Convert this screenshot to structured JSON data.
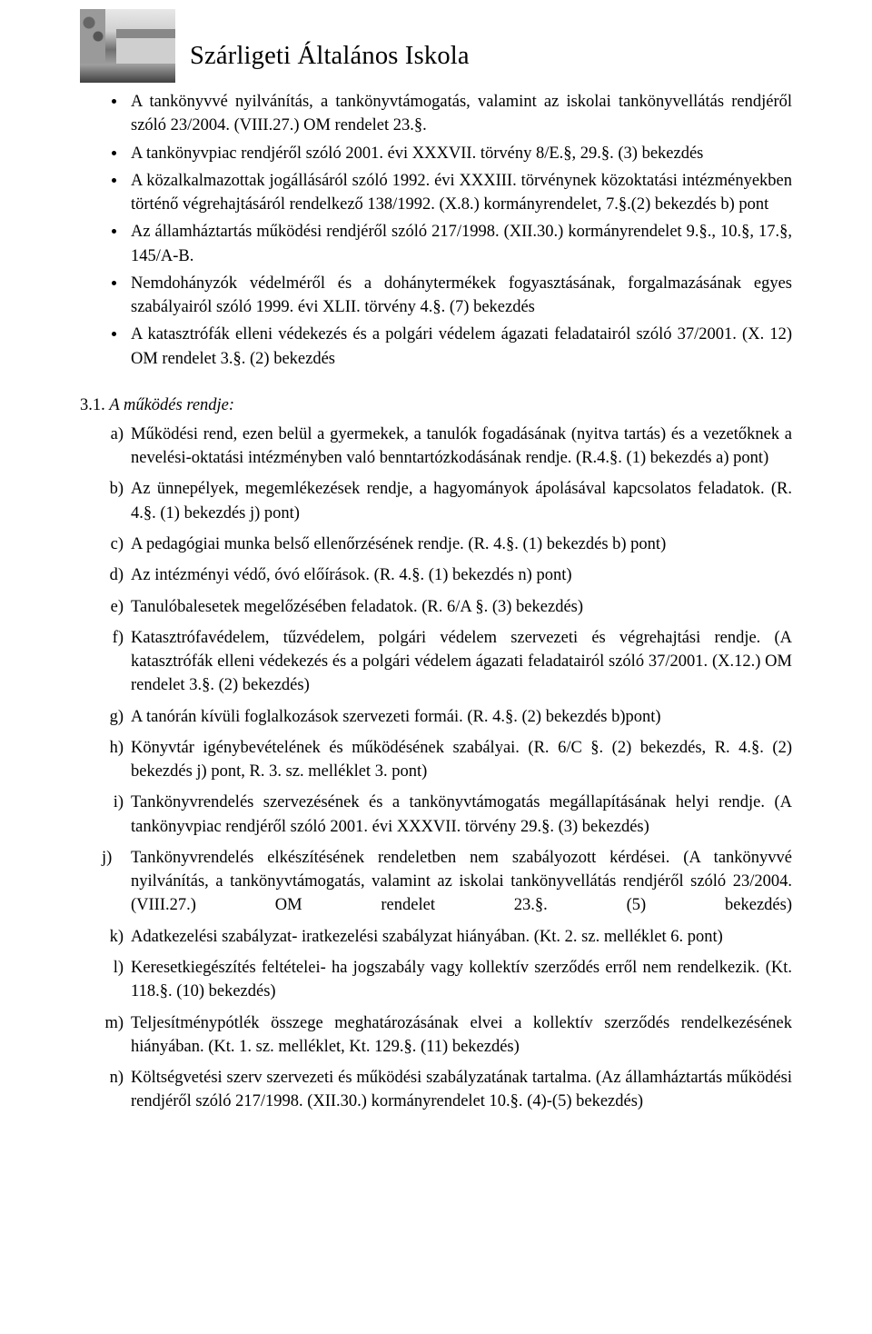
{
  "header": {
    "title": "Szárligeti Általános Iskola"
  },
  "bullets": [
    "A tankönyvvé nyilvánítás, a tankönyvtámogatás, valamint az iskolai tankönyvellátás rendjéről szóló 23/2004. (VIII.27.) OM rendelet 23.§.",
    "A tankönyvpiac rendjéről szóló 2001. évi XXXVII. törvény 8/E.§, 29.§. (3) bekezdés",
    "A közalkalmazottak jogállásáról szóló 1992. évi XXXIII. törvénynek közoktatási intézményekben történő végrehajtásáról rendelkező 138/1992. (X.8.) kormányrendelet, 7.§.(2) bekezdés b) pont",
    "Az államháztartás működési rendjéről szóló 217/1998. (XII.30.) kormányrendelet 9.§., 10.§, 17.§, 145/A-B.",
    "Nemdohányzók védelméről és a dohánytermékek fogyasztásának, forgalmazásának egyes szabályairól szóló 1999. évi XLII. törvény 4.§. (7) bekezdés",
    "A katasztrófák elleni védekezés és a polgári védelem ágazati feladatairól szóló 37/2001. (X. 12) OM rendelet 3.§. (2) bekezdés"
  ],
  "section": {
    "number": "3.1. ",
    "title": "A működés rendje:"
  },
  "lettered": [
    {
      "letter": "a",
      "text": "Működési rend, ezen belül a gyermekek, a tanulók fogadásának (nyitva tartás) és a vezetőknek a nevelési-oktatási intézményben való benntartózkodásának rendje. (R.4.§. (1) bekezdés a) pont)"
    },
    {
      "letter": "b",
      "text": "Az ünnepélyek, megemlékezések rendje, a hagyományok ápolásával kapcsolatos feladatok. (R. 4.§. (1) bekezdés j) pont)"
    },
    {
      "letter": "c",
      "text": "A pedagógiai munka belső ellenőrzésének rendje. (R. 4.§. (1) bekezdés b) pont)"
    },
    {
      "letter": "d",
      "text": "Az intézményi védő, óvó előírások. (R. 4.§. (1) bekezdés n) pont)"
    },
    {
      "letter": "e",
      "text": "Tanulóbalesetek megelőzésében feladatok. (R. 6/A §. (3) bekezdés)"
    },
    {
      "letter": "f",
      "text": "Katasztrófavédelem, tűzvédelem, polgári védelem szervezeti és végrehajtási rendje. (A katasztrófák elleni védekezés és a polgári védelem ágazati feladatairól szóló 37/2001. (X.12.) OM rendelet 3.§. (2) bekezdés)"
    },
    {
      "letter": "g",
      "text": "A tanórán kívüli foglalkozások szervezeti formái. (R. 4.§. (2) bekezdés b)pont)"
    },
    {
      "letter": "h",
      "text": "Könyvtár igénybevételének és működésének szabályai. (R. 6/C §. (2) bekezdés, R. 4.§. (2) bekezdés j) pont, R. 3. sz. melléklet 3. pont)"
    },
    {
      "letter": "i",
      "text": "Tankönyvrendelés szervezésének és a tankönyvtámogatás megállapításának helyi rendje. (A tankönyvpiac rendjéről szóló 2001. évi XXXVII. törvény 29.§. (3) bekezdés)"
    },
    {
      "letter": "j",
      "text": "Tankönyvrendelés elkészítésének rendeletben nem szabályozott kérdései. (A tankönyvvé nyilvánítás, a tankönyvtámogatás, valamint az iskolai tankönyvellátás rendjéről szóló 23/2004. (VIII.27.) OM rendelet 23.§. (5) bekezdés)"
    },
    {
      "letter": "k",
      "text": "Adatkezelési szabályzat- iratkezelési szabályzat hiányában. (Kt. 2. sz. melléklet 6. pont)"
    },
    {
      "letter": "l",
      "text": "Keresetkiegészítés feltételei- ha jogszabály vagy kollektív szerződés erről nem rendelkezik. (Kt. 118.§. (10) bekezdés)"
    },
    {
      "letter": "m",
      "text": "Teljesítménypótlék összege meghatározásának elvei a kollektív szerződés rendelkezésének hiányában. (Kt. 1. sz. melléklet, Kt. 129.§. (11) bekezdés)"
    },
    {
      "letter": "n",
      "text": "Költségvetési szerv szervezeti és működési szabályzatának tartalma. (Az államháztartás működési rendjéről szóló 217/1998. (XII.30.) kormányrendelet 10.§. (4)-(5) bekezdés)"
    }
  ]
}
